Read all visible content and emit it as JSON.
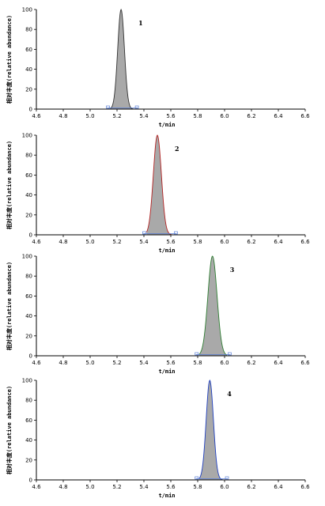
{
  "chart_data": [
    {
      "type": "area",
      "peak_label": "1",
      "xlabel": "t/min",
      "ylabel": "相对丰度(relative abundance)",
      "xlim": [
        4.6,
        6.6
      ],
      "ylim": [
        0,
        100
      ],
      "x_ticks": [
        "4.6",
        "4.8",
        "5.0",
        "5.2",
        "5.4",
        "5.6",
        "5.8",
        "6.0",
        "6.2",
        "6.4",
        "6.6"
      ],
      "y_ticks": [
        "0",
        "20",
        "40",
        "60",
        "80",
        "100"
      ],
      "peak": {
        "retention_time": 5.23,
        "sigma": 0.025,
        "start": 5.15,
        "end": 5.33,
        "height": 100
      },
      "colors": {
        "fill": "#a9a9a9",
        "line": "#333333",
        "baseline": "#5b7fd6"
      }
    },
    {
      "type": "area",
      "peak_label": "2",
      "xlabel": "t/min",
      "ylabel": "相对丰度(relative abundance)",
      "xlim": [
        4.6,
        6.6
      ],
      "ylim": [
        0,
        100
      ],
      "x_ticks": [
        "4.6",
        "4.8",
        "5.0",
        "5.2",
        "5.4",
        "5.6",
        "5.8",
        "6.0",
        "6.2",
        "6.4",
        "6.6"
      ],
      "y_ticks": [
        "0",
        "20",
        "40",
        "60",
        "80",
        "100"
      ],
      "peak": {
        "retention_time": 5.5,
        "sigma": 0.03,
        "start": 5.42,
        "end": 5.62,
        "height": 100
      },
      "colors": {
        "fill": "#a9a9a9",
        "line": "#b22222",
        "baseline": "#5b7fd6"
      }
    },
    {
      "type": "area",
      "peak_label": "3",
      "xlabel": "t/min",
      "ylabel": "相对丰度(relative abundance)",
      "xlim": [
        4.6,
        6.6
      ],
      "ylim": [
        0,
        100
      ],
      "x_ticks": [
        "4.6",
        "4.8",
        "5.0",
        "5.2",
        "5.4",
        "5.6",
        "5.8",
        "6.0",
        "6.2",
        "6.4",
        "6.6"
      ],
      "y_ticks": [
        "0",
        "20",
        "40",
        "60",
        "80",
        "100"
      ],
      "peak": {
        "retention_time": 5.91,
        "sigma": 0.034,
        "start": 5.81,
        "end": 6.02,
        "height": 100
      },
      "colors": {
        "fill": "#a9a9a9",
        "line": "#2e7d32",
        "baseline": "#5b7fd6"
      }
    },
    {
      "type": "area",
      "peak_label": "4",
      "xlabel": "t/min",
      "ylabel": "相对丰度(relative abundance)",
      "xlim": [
        4.6,
        6.6
      ],
      "ylim": [
        0,
        100
      ],
      "x_ticks": [
        "4.6",
        "4.8",
        "5.0",
        "5.2",
        "5.4",
        "5.6",
        "5.8",
        "6.0",
        "6.2",
        "6.4",
        "6.6"
      ],
      "y_ticks": [
        "0",
        "20",
        "40",
        "60",
        "80",
        "100"
      ],
      "peak": {
        "retention_time": 5.89,
        "sigma": 0.027,
        "start": 5.81,
        "end": 6.0,
        "height": 100
      },
      "colors": {
        "fill": "#a9a9a9",
        "line": "#1f3fbf",
        "baseline": "#5b7fd6"
      }
    }
  ]
}
